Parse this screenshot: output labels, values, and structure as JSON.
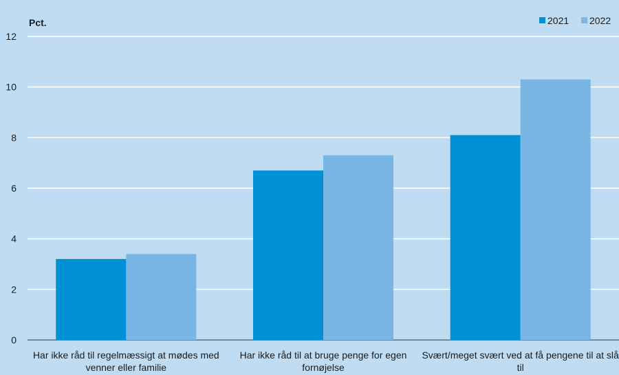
{
  "chart_data": {
    "type": "bar",
    "ylabel": "Pct.",
    "ylim": [
      0,
      12
    ],
    "yticks": [
      "0",
      "2",
      "4",
      "6",
      "8",
      "10",
      "12"
    ],
    "grid": true,
    "legend_position": "top-right",
    "categories": [
      [
        "Har ikke råd til regelmæssigt at mødes med",
        "venner eller familie"
      ],
      [
        "Har ikke råd til at bruge penge for egen",
        "fornøjelse"
      ],
      [
        "Svært/meget svært ved at få pengene til at slå",
        "til"
      ]
    ],
    "series": [
      {
        "name": "2021",
        "color": "#0090d6",
        "values": [
          3.2,
          6.7,
          8.1
        ]
      },
      {
        "name": "2022",
        "color": "#79b6e4",
        "values": [
          3.4,
          7.3,
          10.3
        ]
      }
    ]
  },
  "background": "#c0dcf3"
}
